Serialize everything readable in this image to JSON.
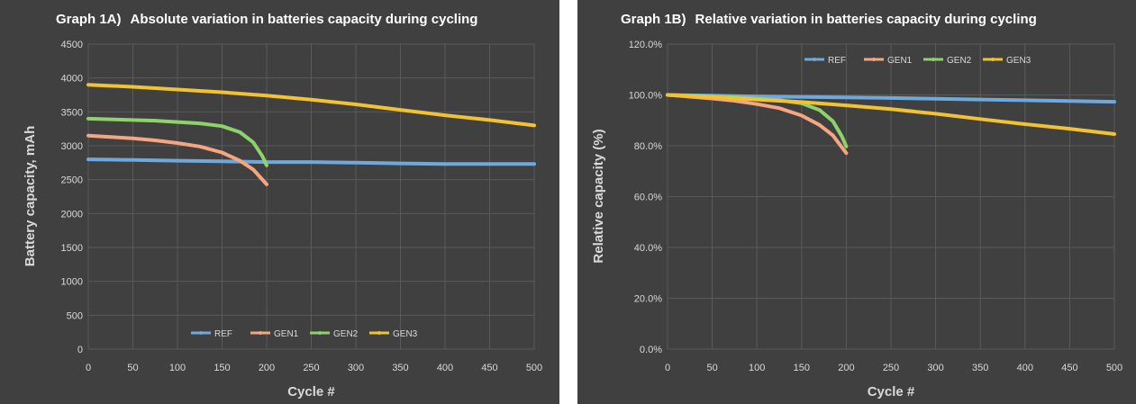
{
  "chart_data": [
    {
      "id": "a",
      "type": "line",
      "title_label": "Graph 1A)",
      "title": "Absolute variation in batteries capacity during cycling",
      "xlabel": "Cycle #",
      "ylabel": "Battery capacity, mAh",
      "xlim": [
        0,
        500
      ],
      "ylim": [
        0,
        4500
      ],
      "xticks": [
        0,
        50,
        100,
        150,
        200,
        250,
        300,
        350,
        400,
        450,
        500
      ],
      "yticks": [
        0,
        500,
        1000,
        1500,
        2000,
        2500,
        3000,
        3500,
        4000,
        4500
      ],
      "xtick_labels": [
        "0",
        "50",
        "100",
        "150",
        "200",
        "250",
        "300",
        "350",
        "400",
        "450",
        "500"
      ],
      "ytick_labels": [
        "0",
        "500",
        "1000",
        "1500",
        "2000",
        "2500",
        "3000",
        "3500",
        "4000",
        "4500"
      ],
      "grid": true,
      "legend_position": "bottom-center",
      "series": [
        {
          "name": "REF",
          "color": "#6fa8dc",
          "x": [
            0,
            50,
            100,
            150,
            200,
            250,
            300,
            350,
            400,
            450,
            500
          ],
          "y": [
            2800,
            2790,
            2780,
            2770,
            2760,
            2760,
            2750,
            2740,
            2730,
            2730,
            2730
          ]
        },
        {
          "name": "GEN1",
          "color": "#f4a582",
          "x": [
            0,
            25,
            50,
            75,
            100,
            125,
            150,
            170,
            185,
            200
          ],
          "y": [
            3150,
            3130,
            3110,
            3080,
            3040,
            2990,
            2900,
            2780,
            2650,
            2430
          ]
        },
        {
          "name": "GEN2",
          "color": "#8ed26b",
          "x": [
            0,
            25,
            50,
            75,
            100,
            125,
            150,
            170,
            185,
            195,
            200
          ],
          "y": [
            3400,
            3390,
            3380,
            3370,
            3350,
            3330,
            3290,
            3200,
            3050,
            2850,
            2710
          ]
        },
        {
          "name": "GEN3",
          "color": "#f1c232",
          "x": [
            0,
            50,
            100,
            150,
            200,
            250,
            300,
            350,
            400,
            450,
            500
          ],
          "y": [
            3900,
            3870,
            3830,
            3790,
            3740,
            3680,
            3610,
            3530,
            3450,
            3380,
            3300
          ]
        }
      ]
    },
    {
      "id": "b",
      "type": "line",
      "title_label": "Graph 1B)",
      "title": "Relative variation in batteries capacity during cycling",
      "xlabel": "Cycle #",
      "ylabel": "Relative capacity (%)",
      "xlim": [
        0,
        500
      ],
      "ylim": [
        0,
        120
      ],
      "xticks": [
        0,
        50,
        100,
        150,
        200,
        250,
        300,
        350,
        400,
        450,
        500
      ],
      "yticks": [
        0,
        20,
        40,
        60,
        80,
        100,
        120
      ],
      "xtick_labels": [
        "0",
        "50",
        "100",
        "150",
        "200",
        "250",
        "300",
        "350",
        "400",
        "450",
        "500"
      ],
      "ytick_labels": [
        "0.0%",
        "20.0%",
        "40.0%",
        "60.0%",
        "80.0%",
        "100.0%",
        "120.0%"
      ],
      "grid": true,
      "legend_position": "top-center",
      "series": [
        {
          "name": "REF",
          "color": "#6fa8dc",
          "x": [
            0,
            50,
            100,
            150,
            200,
            250,
            300,
            350,
            400,
            450,
            500
          ],
          "y": [
            100,
            99.7,
            99.4,
            99.2,
            99,
            98.8,
            98.5,
            98.2,
            97.9,
            97.6,
            97.3
          ]
        },
        {
          "name": "GEN1",
          "color": "#f4a582",
          "x": [
            0,
            25,
            50,
            75,
            100,
            125,
            150,
            170,
            185,
            200
          ],
          "y": [
            100,
            99.3,
            98.6,
            97.7,
            96.4,
            94.8,
            91.9,
            88.2,
            84.1,
            77.1
          ]
        },
        {
          "name": "GEN2",
          "color": "#8ed26b",
          "x": [
            0,
            25,
            50,
            75,
            100,
            125,
            150,
            170,
            185,
            195,
            200
          ],
          "y": [
            100,
            99.7,
            99.4,
            99.1,
            98.5,
            97.9,
            96.7,
            94.1,
            89.7,
            83.8,
            79.7
          ]
        },
        {
          "name": "GEN3",
          "color": "#f1c232",
          "x": [
            0,
            50,
            100,
            150,
            200,
            250,
            300,
            350,
            400,
            450,
            500
          ],
          "y": [
            100,
            99.2,
            98.2,
            97.2,
            95.9,
            94.4,
            92.6,
            90.5,
            88.5,
            86.7,
            84.6
          ]
        }
      ]
    }
  ]
}
